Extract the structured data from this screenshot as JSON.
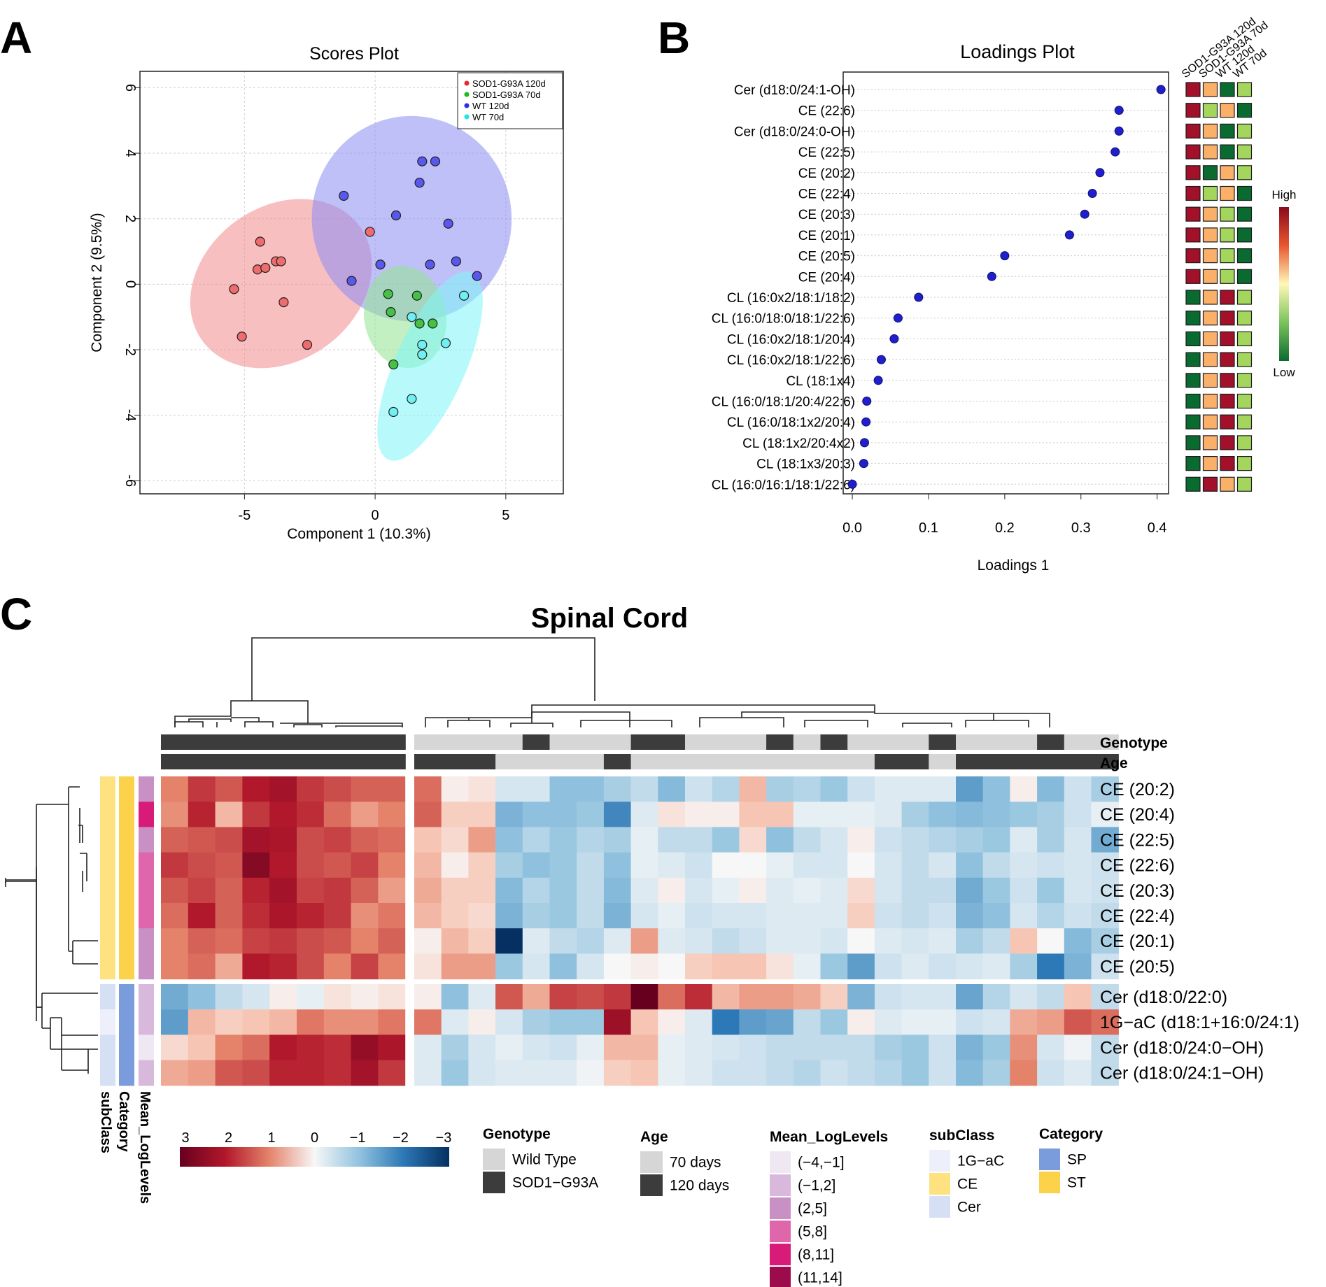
{
  "panel_labels": {
    "a": "A",
    "b": "B",
    "c": "C"
  },
  "colors": {
    "sod120": "#e8282e",
    "sod70": "#22b822",
    "wt120": "#2f2fe6",
    "wt70": "#1fe4ec",
    "ell_sod120": "#f08a8c",
    "ell_sod70": "#8fe38f",
    "ell_wt120": "#8d8df4",
    "ell_wt70": "#7df5f7",
    "dot": "#1f1fcf",
    "heat_high": "#8b0a1c",
    "heat_low": "#0a6b30"
  },
  "chart_data": [
    {
      "type": "scatter",
      "title": "Scores Plot",
      "xlabel": "Component 1 (10.3%)",
      "ylabel": "Component 2 (9.5%/)",
      "xlim": [
        -9,
        7.2
      ],
      "ylim": [
        -6.4,
        6.5
      ],
      "xticks": [
        -5,
        0,
        5
      ],
      "yticks": [
        -6,
        -4,
        -2,
        0,
        2,
        4,
        6
      ],
      "legend": [
        "SOD1-G93A 120d",
        "SOD1-G93A 70d",
        "WT 120d",
        "WT 70d"
      ],
      "series": [
        {
          "name": "SOD1-G93A 120d",
          "x": [
            -5.4,
            -5.1,
            -4.4,
            -4.5,
            -4.2,
            -3.8,
            -3.6,
            -3.5,
            -2.6,
            -0.2
          ],
          "y": [
            -0.15,
            -1.6,
            1.3,
            0.45,
            0.5,
            0.7,
            0.7,
            -0.55,
            -1.85,
            1.6
          ]
        },
        {
          "name": "SOD1-G93A 70d",
          "x": [
            0.5,
            0.6,
            1.6,
            1.7,
            2.2,
            0.7
          ],
          "y": [
            -0.3,
            -0.85,
            -0.35,
            -1.2,
            -1.2,
            -2.45
          ]
        },
        {
          "name": "WT 120d",
          "x": [
            -1.2,
            0.8,
            1.8,
            2.3,
            1.7,
            2.8,
            0.2,
            -0.9,
            2.1,
            3.1,
            3.9
          ],
          "y": [
            2.7,
            2.1,
            3.75,
            3.75,
            3.1,
            1.85,
            0.6,
            0.1,
            0.6,
            0.7,
            0.25
          ]
        },
        {
          "name": "WT 70d",
          "x": [
            1.4,
            1.8,
            1.8,
            2.7,
            3.4,
            1.4,
            0.7
          ],
          "y": [
            -1.0,
            -1.85,
            -2.15,
            -1.8,
            -0.35,
            -3.5,
            -3.9
          ]
        }
      ],
      "ellipses": [
        {
          "name": "SOD1-G93A 120d",
          "cx": -3.6,
          "cy": 0.02,
          "rx": 3.8,
          "ry": 2.4,
          "angle_deg": 36
        },
        {
          "name": "WT 120d",
          "cx": 1.4,
          "cy": 2.0,
          "rx": 3.9,
          "ry": 3.2,
          "angle_deg": 5
        },
        {
          "name": "SOD1-G93A 70d",
          "cx": 1.15,
          "cy": -1.0,
          "rx": 1.6,
          "ry": 1.6,
          "angle_deg": 10
        },
        {
          "name": "WT 70d",
          "cx": 2.1,
          "cy": -2.5,
          "rx": 4.0,
          "ry": 1.1,
          "angle_deg": 66
        }
      ]
    },
    {
      "type": "dot",
      "title": "Loadings Plot",
      "xlabel": "Loadings 1",
      "xlim": [
        -0.012,
        0.415
      ],
      "xticks": [
        0.0,
        0.1,
        0.2,
        0.3,
        0.4
      ],
      "categories": [
        "Cer (d18:0/24:1-OH)",
        "CE (22:6)",
        "Cer (d18:0/24:0-OH)",
        "CE (22:5)",
        "CE (20:2)",
        "CE (22:4)",
        "CE (20:3)",
        "CE (20:1)",
        "CE (20:5)",
        "CE (20:4)",
        "CL (16:0x2/18:1/18:2)",
        "CL (16:0/18:0/18:1/22:6)",
        "CL (16:0x2/18:1/20:4)",
        "CL (16:0x2/18:1/22:6)",
        "CL (18:1x4)",
        "CL (16:0/18:1/20:4/22:6)",
        "CL (16:0/18:1x2/20:4)",
        "CL (18:1x2/20:4x2)",
        "CL (18:1x3/20:3)",
        "CL (16:0/16:1/18:1/22:6)"
      ],
      "values": [
        0.405,
        0.35,
        0.35,
        0.345,
        0.325,
        0.315,
        0.305,
        0.285,
        0.2,
        0.183,
        0.087,
        0.06,
        0.055,
        0.038,
        0.034,
        0.019,
        0.018,
        0.016,
        0.015,
        0.0
      ],
      "group_columns": [
        "SOD1-G93A 120d",
        "SOD1-G93A 70d",
        "WT 120d",
        "WT 70d"
      ],
      "group_levels": [
        [
          4,
          3,
          1,
          2
        ],
        [
          4,
          2,
          3,
          1
        ],
        [
          4,
          3,
          1,
          2
        ],
        [
          4,
          3,
          1,
          2
        ],
        [
          4,
          1,
          3,
          2
        ],
        [
          4,
          2,
          3,
          1
        ],
        [
          4,
          3,
          2,
          1
        ],
        [
          4,
          3,
          2,
          1
        ],
        [
          4,
          3,
          2,
          1
        ],
        [
          4,
          3,
          2,
          1
        ],
        [
          1,
          3,
          4,
          2
        ],
        [
          1,
          3,
          4,
          2
        ],
        [
          1,
          3,
          4,
          2
        ],
        [
          1,
          3,
          4,
          2
        ],
        [
          1,
          3,
          4,
          2
        ],
        [
          1,
          3,
          4,
          2
        ],
        [
          1,
          3,
          4,
          2
        ],
        [
          1,
          3,
          4,
          2
        ],
        [
          1,
          3,
          4,
          2
        ],
        [
          1,
          4,
          3,
          2
        ]
      ],
      "legend_high": "High",
      "legend_low": "Low"
    },
    {
      "type": "heatmap",
      "title": "Spinal Cord",
      "rows": [
        "CE (20:2)",
        "CE (20:4)",
        "CE (22:5)",
        "CE (22:6)",
        "CE (20:3)",
        "CE (22:4)",
        "CE (20:1)",
        "CE (20:5)",
        "Cer (d18:0/22:0)",
        "1G−aC (d18:1+16:0/24:1)",
        "Cer (d18:0/24:0−OH)",
        "Cer (d18:0/24:1−OH)"
      ],
      "left_group_cols": 9,
      "values": [
        [
          1.0,
          1.7,
          1.4,
          2.0,
          2.2,
          1.7,
          1.5,
          1.3,
          1.3,
          1.2,
          0.1,
          0.2,
          -0.4,
          -0.4,
          -1.0,
          -1.0,
          -0.8,
          -0.6,
          -1.1,
          -0.5,
          -0.7,
          0.6,
          -0.8,
          -0.7,
          -0.9,
          -0.5,
          -0.3,
          -0.3,
          -0.3,
          -1.5,
          -1.0,
          0.1,
          -1.1,
          -0.5,
          -0.8
        ],
        [
          0.9,
          1.9,
          0.6,
          1.7,
          2.0,
          1.8,
          1.2,
          0.8,
          1.0,
          1.3,
          0.4,
          0.4,
          -1.2,
          -1.0,
          -1.0,
          -0.9,
          -1.8,
          -0.3,
          0.2,
          0.1,
          0.1,
          0.5,
          0.5,
          -0.2,
          -0.2,
          -0.2,
          -0.3,
          -0.8,
          -1.0,
          -1.1,
          -1.0,
          -0.9,
          -0.8,
          -0.5,
          -0.2
        ],
        [
          1.3,
          1.4,
          1.5,
          2.2,
          2.1,
          1.5,
          1.6,
          1.3,
          1.2,
          0.5,
          0.3,
          0.8,
          -1.0,
          -0.7,
          -0.9,
          -0.7,
          -0.8,
          -0.2,
          -0.6,
          -0.6,
          -0.9,
          0.3,
          -1.0,
          -0.6,
          -0.4,
          0.1,
          -0.5,
          -0.6,
          -0.7,
          -0.8,
          -0.9,
          -0.3,
          -0.8,
          -0.4,
          -1.3
        ],
        [
          1.7,
          1.5,
          1.4,
          2.6,
          2.0,
          1.5,
          1.4,
          1.6,
          1.0,
          0.6,
          0.1,
          0.4,
          -0.8,
          -1.0,
          -0.9,
          -0.6,
          -1.0,
          -0.2,
          -0.3,
          -0.5,
          0.0,
          0.0,
          -0.2,
          -0.4,
          -0.4,
          0.0,
          -0.4,
          -0.6,
          -0.4,
          -1.0,
          -0.6,
          -0.4,
          -0.5,
          -0.4,
          -0.5
        ],
        [
          1.4,
          1.6,
          1.3,
          1.9,
          2.2,
          1.6,
          1.7,
          1.3,
          0.8,
          0.7,
          0.4,
          0.4,
          -1.1,
          -0.7,
          -0.9,
          -0.6,
          -1.1,
          -0.3,
          0.1,
          -0.4,
          -0.2,
          0.1,
          -0.3,
          -0.2,
          -0.3,
          0.3,
          -0.4,
          -0.6,
          -0.6,
          -1.3,
          -0.9,
          -0.5,
          -0.9,
          -0.4,
          -0.5
        ],
        [
          1.2,
          2.0,
          1.3,
          1.8,
          2.1,
          1.9,
          1.7,
          0.9,
          1.1,
          0.6,
          0.4,
          0.3,
          -1.2,
          -0.8,
          -0.9,
          -0.6,
          -1.2,
          -0.4,
          -0.2,
          -0.5,
          -0.4,
          -0.4,
          -0.3,
          -0.3,
          -0.3,
          0.4,
          -0.5,
          -0.6,
          -0.5,
          -1.2,
          -1.0,
          -0.4,
          -0.7,
          -0.5,
          -0.6
        ],
        [
          1.0,
          1.3,
          1.2,
          1.6,
          1.7,
          1.5,
          1.4,
          1.0,
          1.3,
          0.1,
          0.6,
          0.4,
          -3.0,
          -0.3,
          -0.6,
          -0.7,
          -0.3,
          0.8,
          -0.3,
          -0.4,
          -0.6,
          -0.5,
          -0.3,
          -0.3,
          -0.4,
          0.0,
          -0.3,
          -0.4,
          -0.3,
          -0.8,
          -0.6,
          0.5,
          0.0,
          -1.1,
          -0.8
        ],
        [
          1.0,
          1.2,
          0.7,
          2.0,
          1.9,
          1.5,
          1.0,
          1.6,
          1.0,
          0.2,
          0.8,
          0.8,
          -0.9,
          -0.4,
          -1.0,
          -0.4,
          0.0,
          0.1,
          0.0,
          0.4,
          0.5,
          0.5,
          0.2,
          -0.2,
          -0.9,
          -1.5,
          -0.5,
          -0.3,
          -0.5,
          -0.4,
          -0.3,
          -0.8,
          -2.0,
          -1.2,
          -0.5
        ],
        [
          -1.3,
          -1.0,
          -0.6,
          -0.4,
          0.1,
          -0.2,
          0.2,
          0.1,
          0.2,
          0.1,
          -1.0,
          -0.3,
          1.4,
          0.7,
          1.6,
          1.5,
          1.7,
          3.0,
          1.2,
          1.8,
          0.6,
          0.8,
          0.8,
          0.7,
          0.4,
          -1.2,
          -0.5,
          -0.4,
          -0.4,
          -1.4,
          -0.7,
          -0.4,
          -0.6,
          0.5,
          -0.6
        ],
        [
          -1.5,
          0.6,
          0.4,
          0.5,
          0.6,
          1.1,
          0.9,
          0.9,
          1.1,
          1.1,
          -0.3,
          0.1,
          -0.4,
          -0.8,
          -0.9,
          -0.9,
          2.3,
          0.5,
          0.1,
          -0.3,
          -2.0,
          -1.5,
          -1.4,
          -0.6,
          -0.9,
          0.1,
          -0.3,
          -0.2,
          -0.2,
          -0.5,
          -0.4,
          0.7,
          0.8,
          1.4,
          1.2
        ],
        [
          0.3,
          0.5,
          1.0,
          1.2,
          2.0,
          1.9,
          1.8,
          2.4,
          2.1,
          -0.3,
          -0.8,
          -0.4,
          -0.2,
          -0.4,
          -0.5,
          -0.2,
          0.6,
          0.6,
          -0.2,
          -0.3,
          -0.4,
          -0.5,
          -0.6,
          -0.6,
          -0.6,
          -0.6,
          -0.8,
          -0.9,
          -0.5,
          -1.2,
          -0.9,
          0.9,
          -0.4,
          -0.1,
          -0.6
        ],
        [
          0.7,
          0.8,
          1.4,
          1.5,
          1.9,
          1.9,
          1.8,
          2.2,
          1.7,
          -0.3,
          -0.9,
          -0.4,
          -0.3,
          -0.3,
          -0.3,
          -0.1,
          0.4,
          0.5,
          -0.2,
          -0.3,
          -0.5,
          -0.5,
          -0.6,
          -0.7,
          -0.5,
          -0.6,
          -0.7,
          -0.9,
          -0.5,
          -1.1,
          -0.8,
          1.0,
          -0.5,
          -0.3,
          -0.6
        ]
      ],
      "genotype": [
        1,
        1,
        1,
        1,
        1,
        1,
        1,
        1,
        1,
        0,
        0,
        0,
        0,
        1,
        0,
        0,
        0,
        1,
        1,
        0,
        0,
        0,
        1,
        0,
        1,
        0,
        0,
        0,
        1,
        0,
        0,
        0,
        1,
        0,
        0
      ],
      "age": [
        1,
        1,
        1,
        1,
        1,
        1,
        1,
        1,
        1,
        1,
        1,
        1,
        0,
        0,
        0,
        0,
        1,
        0,
        0,
        0,
        0,
        0,
        0,
        0,
        0,
        0,
        1,
        1,
        0,
        1,
        1,
        1,
        1,
        1,
        1
      ],
      "row_annotations": {
        "subClass": [
          "CE",
          "CE",
          "CE",
          "CE",
          "CE",
          "CE",
          "CE",
          "CE",
          "Cer",
          "1G-aC",
          "Cer",
          "Cer"
        ],
        "Category": [
          "ST",
          "ST",
          "ST",
          "ST",
          "ST",
          "ST",
          "ST",
          "ST",
          "SP",
          "SP",
          "SP",
          "SP"
        ],
        "Mean_LogLevels": [
          "(2,5]",
          "(8,11]",
          "(2,5]",
          "(5,8]",
          "(5,8]",
          "(5,8]",
          "(2,5]",
          "(2,5]",
          "(-1,2]",
          "(-1,2]",
          "(-4,-1]",
          "(-1,2]"
        ]
      },
      "annotation_track_labels": [
        "Genotype",
        "Age"
      ],
      "row_track_labels": [
        "subClass",
        "Category",
        "Mean_LogLevels"
      ],
      "colorbar": {
        "ticks": [
          "3",
          "2",
          "1",
          "0",
          "−1",
          "−2",
          "−3"
        ],
        "range": [
          3,
          -3
        ]
      },
      "legends": {
        "genotype": {
          "title": "Genotype",
          "items": [
            {
              "label": "Wild Type",
              "color": "#d6d6d6"
            },
            {
              "label": "SOD1−G93A",
              "color": "#3c3c3c"
            }
          ]
        },
        "age": {
          "title": "Age",
          "items": [
            {
              "label": "70 days",
              "color": "#d6d6d6"
            },
            {
              "label": "120 days",
              "color": "#3c3c3c"
            }
          ]
        },
        "mean": {
          "title": "Mean_LogLevels",
          "items": [
            {
              "label": "(−4,−1]",
              "color": "#efe7f2"
            },
            {
              "label": "(−1,2]",
              "color": "#d8b9dc"
            },
            {
              "label": "(2,5]",
              "color": "#c890c4"
            },
            {
              "label": "(5,8]",
              "color": "#e066ac"
            },
            {
              "label": "(8,11]",
              "color": "#d81b78"
            },
            {
              "label": "(11,14]",
              "color": "#9c0c4c"
            }
          ]
        },
        "subclass": {
          "title": "subClass",
          "items": [
            {
              "label": "1G−aC",
              "color": "#edf0fb"
            },
            {
              "label": "CE",
              "color": "#fde27f"
            },
            {
              "label": "Cer",
              "color": "#d6e0f4"
            }
          ]
        },
        "category": {
          "title": "Category",
          "items": [
            {
              "label": "SP",
              "color": "#7a9cdc"
            },
            {
              "label": "ST",
              "color": "#fcd24a"
            }
          ]
        }
      }
    }
  ]
}
